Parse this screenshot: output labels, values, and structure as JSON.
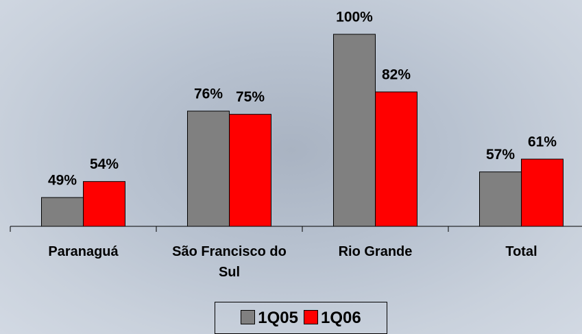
{
  "chart_data": {
    "type": "bar",
    "categories": [
      "Paranaguá",
      "São Francisco do Sul",
      "Rio Grande",
      "Total"
    ],
    "series": [
      {
        "name": "1Q05",
        "color": "#808080",
        "values": [
          49,
          76,
          100,
          57
        ],
        "value_labels": [
          "49%",
          "76%",
          "100%",
          "57%"
        ]
      },
      {
        "name": "1Q06",
        "color": "#ff0000",
        "values": [
          54,
          75,
          82,
          61
        ],
        "value_labels": [
          "54%",
          "75%",
          "82%",
          "61%"
        ]
      }
    ],
    "ylim": [
      40,
      100
    ]
  }
}
